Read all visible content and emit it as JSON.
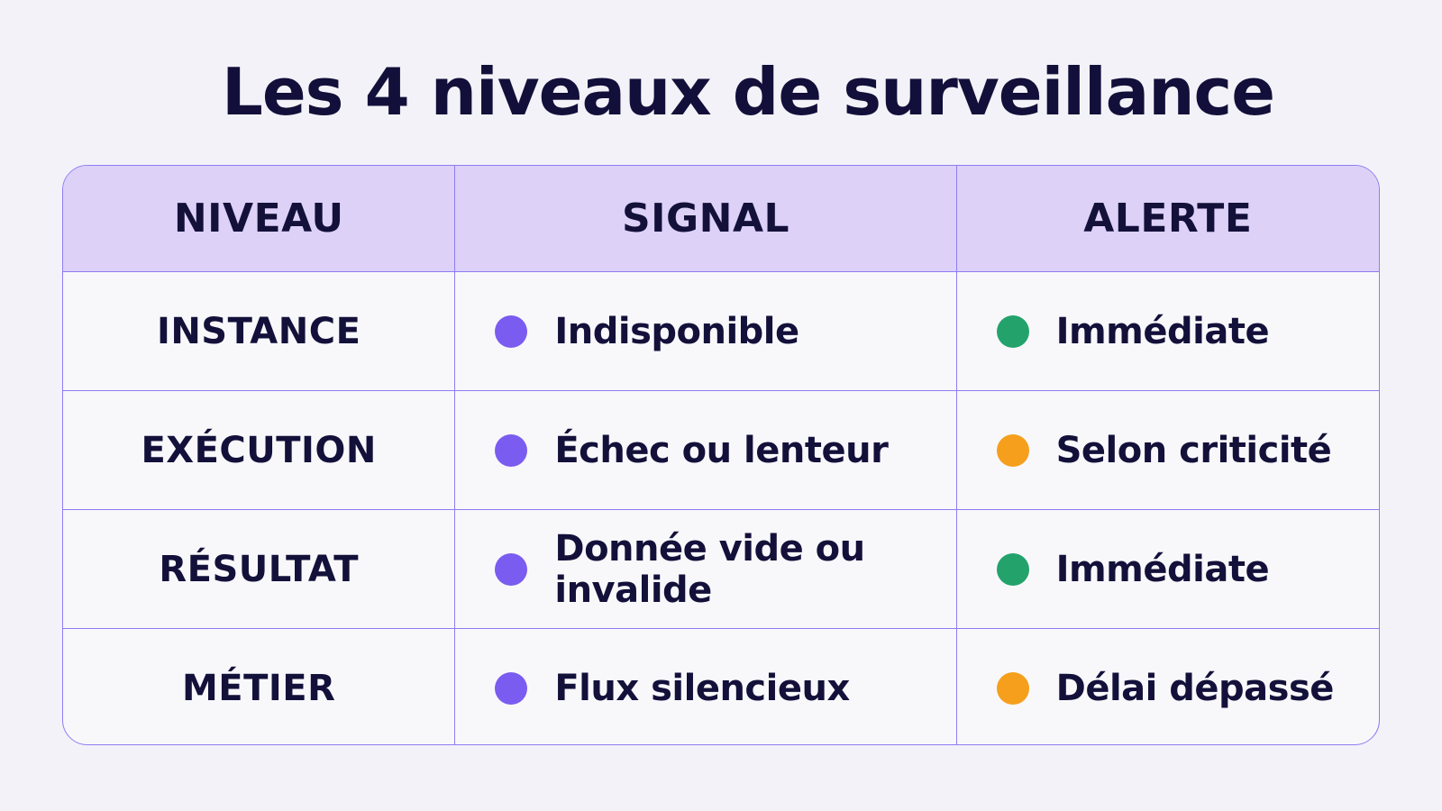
{
  "title": "Les 4 niveaux de surveillance",
  "table": {
    "headers": [
      "NIVEAU",
      "SIGNAL",
      "ALERTE"
    ],
    "rows": [
      {
        "level": "INSTANCE",
        "signal": "Indisponible",
        "signal_dot_color": "#7b5cf0",
        "alert": "Immédiate",
        "alert_dot_color": "#23a36b"
      },
      {
        "level": "EXÉCUTION",
        "signal": "Échec ou lenteur",
        "signal_dot_color": "#7b5cf0",
        "alert": "Selon criticité",
        "alert_dot_color": "#f59f1c"
      },
      {
        "level": "RÉSULTAT",
        "signal": "Donnée vide ou invalide",
        "signal_dot_color": "#7b5cf0",
        "alert": "Immédiate",
        "alert_dot_color": "#23a36b"
      },
      {
        "level": "MÉTIER",
        "signal": "Flux silencieux",
        "signal_dot_color": "#7b5cf0",
        "alert": "Délai dépassé",
        "alert_dot_color": "#f59f1c"
      }
    ]
  },
  "colors": {
    "background": "#f3f2f8",
    "header_fill": "#ddd1f8",
    "border": "#8f7cf2",
    "text": "#13113a"
  }
}
